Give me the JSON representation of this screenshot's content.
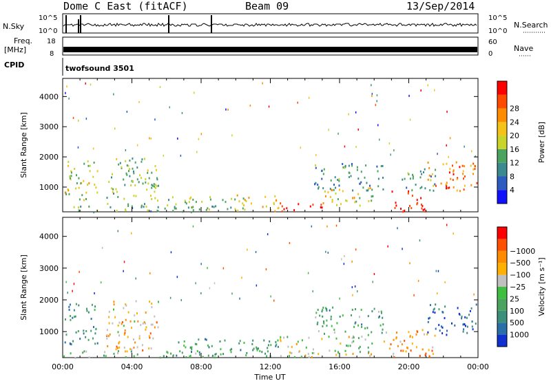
{
  "header": {
    "title": "Dome C East (fitACF)",
    "beam": "Beam 09",
    "date": "13/Sep/2014"
  },
  "top_panels": {
    "nsky_label": "N.Sky",
    "nsky_ticks": [
      "10^5",
      "10^0"
    ],
    "nsearch_label": "N.Search",
    "nsearch_ticks": [
      "10^5",
      "10^0"
    ],
    "freq_label_1": "Freq.",
    "freq_label_2": "[MHz]",
    "freq_ticks": [
      "18",
      "8"
    ],
    "nave_label": "Nave",
    "nave_ticks": [
      "60",
      "0"
    ],
    "cpid_label": "CPID",
    "cpid_value": "twofsound 3501"
  },
  "chart_data": [
    {
      "type": "heatmap",
      "ylabel": "Slant Range [km]",
      "yticks": [
        1000,
        2000,
        3000,
        4000
      ],
      "ylim": [
        180,
        4600
      ],
      "xlabel": "Time UT",
      "xticks": [
        "00:00",
        "04:00",
        "08:00",
        "12:00",
        "16:00",
        "20:00",
        "00:00"
      ],
      "xlim_hours": [
        0,
        24
      ],
      "colorbar": {
        "label": "Power [dB]",
        "ticks": [
          "4",
          "8",
          "12",
          "16",
          "20",
          "24",
          "28"
        ],
        "colors": [
          "#1010ff",
          "#2e5bc0",
          "#3a8a90",
          "#4aa35f",
          "#c9d42a",
          "#f5c21a",
          "#ff8c00",
          "#ff4a00",
          "#ff0000"
        ]
      },
      "regions": [
        {
          "t0": 0.1,
          "t1": 2.0,
          "r0": 600,
          "r1": 1900,
          "v": 0.55
        },
        {
          "t0": 0.0,
          "t1": 9.0,
          "r0": 200,
          "r1": 420,
          "v": 0.35
        },
        {
          "t0": 2.5,
          "t1": 5.5,
          "r0": 400,
          "r1": 2000,
          "v": 0.4
        },
        {
          "t0": 6.0,
          "t1": 10.0,
          "r0": 250,
          "r1": 700,
          "v": 0.45
        },
        {
          "t0": 10.0,
          "t1": 12.5,
          "r0": 220,
          "r1": 800,
          "v": 0.6
        },
        {
          "t0": 12.5,
          "t1": 15.0,
          "r0": 220,
          "r1": 500,
          "v": 0.92
        },
        {
          "t0": 15.0,
          "t1": 18.0,
          "r0": 400,
          "r1": 1000,
          "v": 0.55
        },
        {
          "t0": 14.5,
          "t1": 18.5,
          "r0": 900,
          "r1": 1800,
          "v": 0.3
        },
        {
          "t0": 19.0,
          "t1": 21.0,
          "r0": 200,
          "r1": 900,
          "v": 0.88
        },
        {
          "t0": 21.0,
          "t1": 23.9,
          "r0": 900,
          "r1": 1900,
          "v": 0.75
        },
        {
          "t0": 19.5,
          "t1": 21.5,
          "r0": 900,
          "r1": 1700,
          "v": 0.35
        }
      ]
    },
    {
      "type": "heatmap",
      "ylabel": "Slant Range [km]",
      "yticks": [
        1000,
        2000,
        3000,
        4000
      ],
      "ylim": [
        180,
        4600
      ],
      "xlabel": "Time UT",
      "xticks": [
        "00:00",
        "04:00",
        "08:00",
        "12:00",
        "16:00",
        "20:00",
        "00:00"
      ],
      "xlim_hours": [
        0,
        24
      ],
      "colorbar": {
        "label": "Velocity [m s⁻¹]",
        "ticks": [
          "1000",
          "500",
          "100",
          "25",
          "−25",
          "−100",
          "−500",
          "−1000"
        ],
        "colors": [
          "#1030d0",
          "#2a6fa8",
          "#3c8f7a",
          "#4aa35f",
          "#3fbf3f",
          "#c0c0c0",
          "#ffb000",
          "#ff8c00",
          "#ff5000",
          "#ff0000"
        ]
      },
      "regions": [
        {
          "t0": 0.1,
          "t1": 2.0,
          "r0": 600,
          "r1": 1900,
          "v": 0.25
        },
        {
          "t0": 0.0,
          "t1": 9.0,
          "r0": 200,
          "r1": 420,
          "v": 0.4
        },
        {
          "t0": 2.5,
          "t1": 5.5,
          "r0": 400,
          "r1": 2000,
          "v": 0.65
        },
        {
          "t0": 6.0,
          "t1": 12.5,
          "r0": 220,
          "r1": 800,
          "v": 0.3
        },
        {
          "t0": 12.5,
          "t1": 18.0,
          "r0": 220,
          "r1": 900,
          "v": 0.55
        },
        {
          "t0": 14.5,
          "t1": 18.5,
          "r0": 900,
          "r1": 1800,
          "v": 0.35
        },
        {
          "t0": 18.5,
          "t1": 21.5,
          "r0": 200,
          "r1": 1100,
          "v": 0.72
        },
        {
          "t0": 21.0,
          "t1": 23.9,
          "r0": 900,
          "r1": 1900,
          "v": 0.15
        }
      ]
    }
  ]
}
